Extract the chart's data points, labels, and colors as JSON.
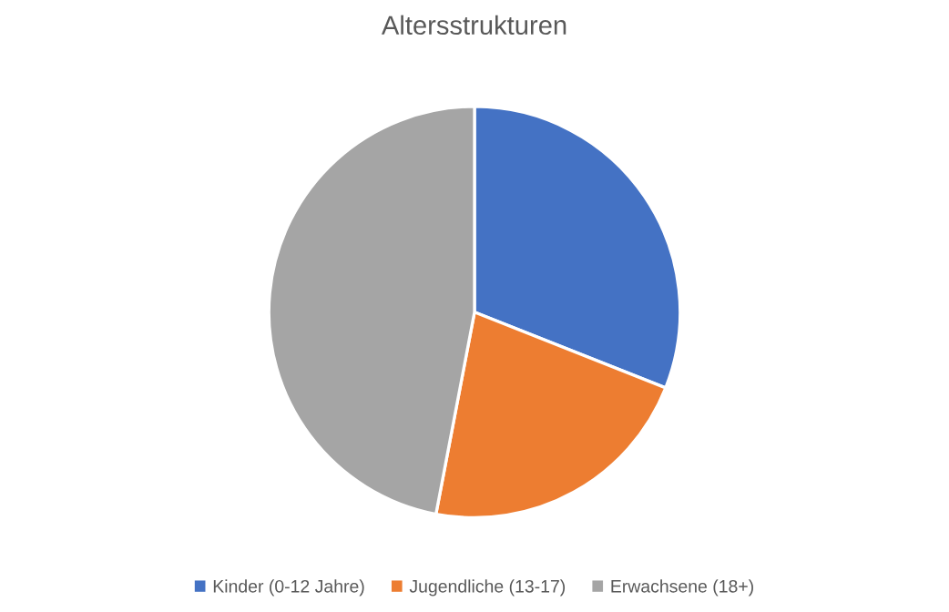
{
  "chart_data": {
    "type": "pie",
    "title": "Altersstrukturen",
    "categories": [
      "Kinder (0-12 Jahre)",
      "Jugendliche (13-17)",
      "Erwachsene (18+)"
    ],
    "values": [
      31,
      22,
      47
    ],
    "colors": [
      "#4472c4",
      "#ed7d31",
      "#a5a5a5"
    ],
    "legend": "bottom"
  }
}
